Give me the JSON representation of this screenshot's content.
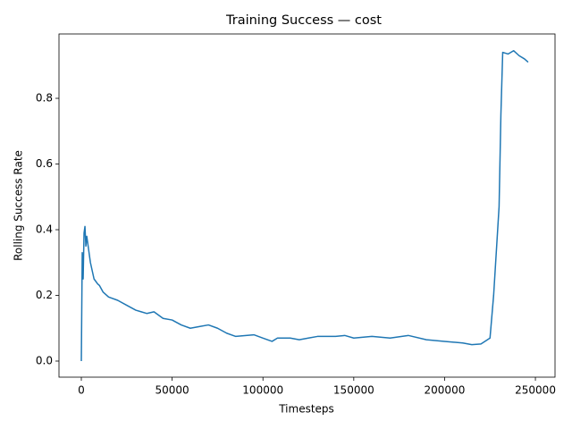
{
  "chart_data": {
    "type": "line",
    "title": "Training Success — cost",
    "x_label": "Timesteps",
    "y_label": "Rolling Success Rate",
    "series": [
      {
        "color": "#1f77b4",
        "x": [
          0,
          500,
          1000,
          1500,
          2000,
          2500,
          3000,
          4000,
          5000,
          7000,
          9000,
          10000,
          12000,
          15000,
          20000,
          25000,
          30000,
          33000,
          36000,
          40000,
          45000,
          50000,
          55000,
          60000,
          65000,
          70000,
          75000,
          80000,
          85000,
          95000,
          100000,
          105000,
          108000,
          115000,
          120000,
          125000,
          130000,
          140000,
          145000,
          150000,
          160000,
          170000,
          180000,
          190000,
          200000,
          210000,
          215000,
          220000,
          225000,
          227000,
          229000,
          230000,
          231000,
          232000,
          235000,
          238000,
          241000,
          244000,
          246000
        ],
        "values": [
          0.0,
          0.33,
          0.25,
          0.39,
          0.41,
          0.35,
          0.38,
          0.34,
          0.3,
          0.25,
          0.235,
          0.23,
          0.21,
          0.195,
          0.185,
          0.17,
          0.155,
          0.15,
          0.145,
          0.15,
          0.13,
          0.125,
          0.11,
          0.1,
          0.105,
          0.11,
          0.1,
          0.085,
          0.075,
          0.08,
          0.07,
          0.06,
          0.07,
          0.07,
          0.065,
          0.07,
          0.075,
          0.075,
          0.078,
          0.07,
          0.075,
          0.07,
          0.078,
          0.065,
          0.06,
          0.055,
          0.05,
          0.052,
          0.07,
          0.2,
          0.38,
          0.47,
          0.75,
          0.94,
          0.935,
          0.945,
          0.93,
          0.92,
          0.91
        ]
      }
    ],
    "xlim": [
      -12300,
      260800
    ],
    "ylim": [
      -0.049,
      0.996
    ],
    "xticks": [
      0,
      50000,
      100000,
      150000,
      200000,
      250000
    ],
    "yticks": [
      {
        "value": 0,
        "label": "0.0"
      },
      0.2,
      0.4,
      0.6,
      0.8
    ]
  }
}
